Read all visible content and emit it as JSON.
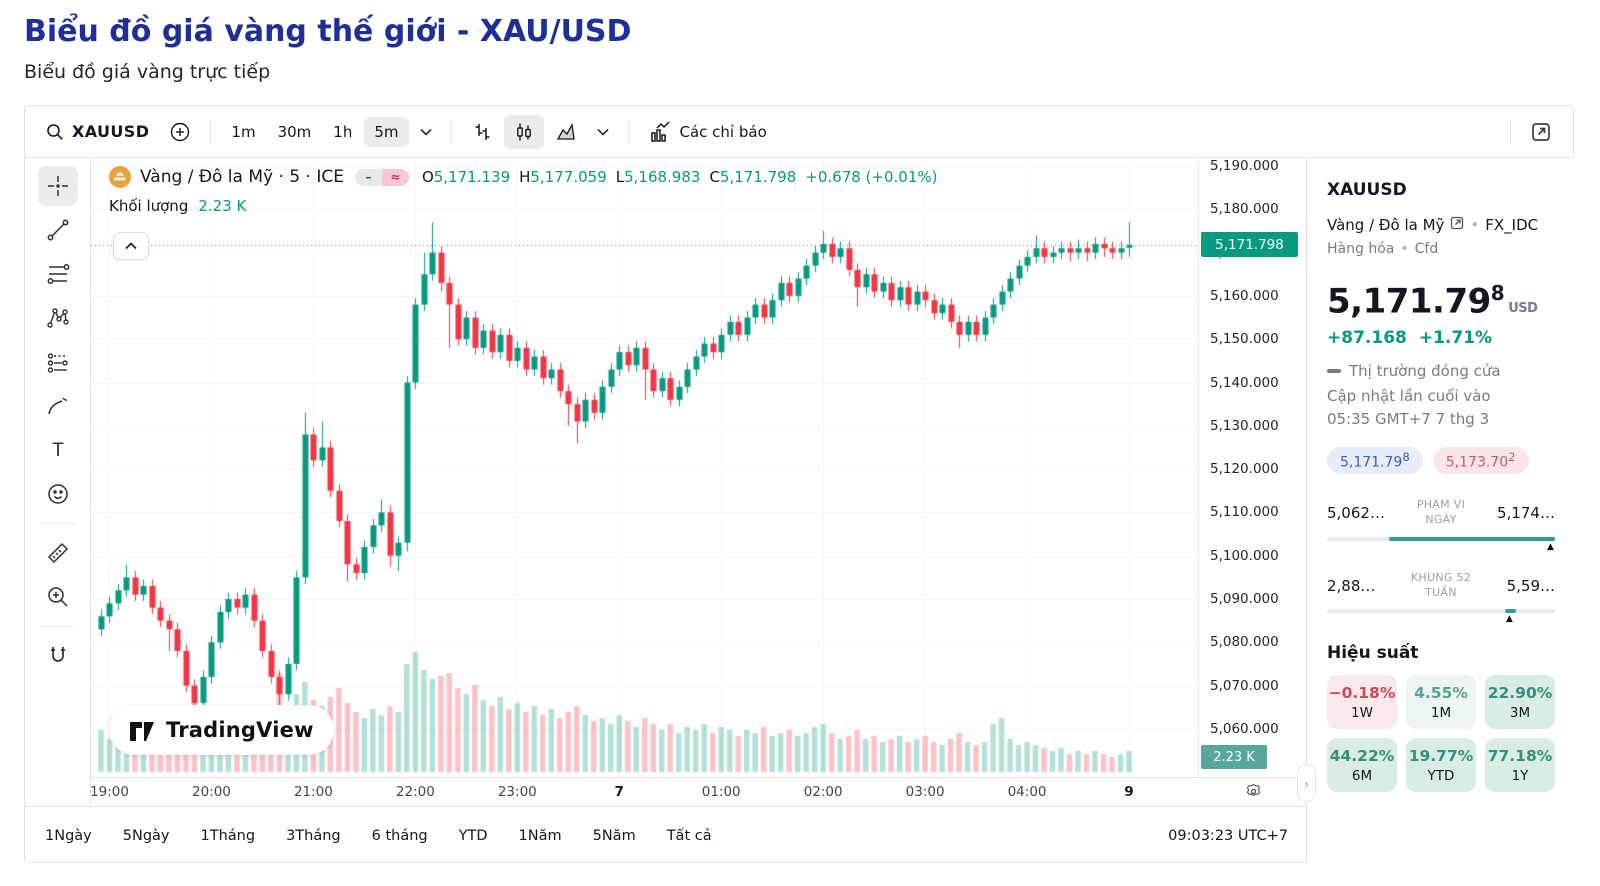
{
  "page": {
    "title": "Biểu đồ giá vàng thế giới - XAU/USD",
    "subtitle": "Biểu đồ giá vàng trực tiếp",
    "title_color": "#1e2f97"
  },
  "toolbar": {
    "symbol": "XAUUSD",
    "intervals": [
      "1m",
      "30m",
      "1h",
      "5m"
    ],
    "active_interval": "5m",
    "indicators_label": "Các chỉ báo",
    "icons": [
      "search-icon",
      "compare-plus-icon",
      "chevron-down-icon",
      "bars-style-icon",
      "candles-style-icon",
      "area-style-icon",
      "indicators-icon",
      "external-link-icon"
    ]
  },
  "left_toolbar": {
    "tools": [
      "crosshair",
      "trend-line",
      "fib-retracement",
      "xabcd-pattern",
      "forecast",
      "brush",
      "text",
      "emoji",
      "ruler",
      "zoom-in",
      "magnet"
    ],
    "active_tool": "crosshair"
  },
  "legend": {
    "name": "Vàng / Đô la Mỹ · 5 · ICE",
    "o_label": "O",
    "o": "5,171.139",
    "h_label": "H",
    "h": "5,177.059",
    "l_label": "L",
    "l": "5,168.983",
    "c_label": "C",
    "c": "5,171.798",
    "change": "+0.678 (+0.01%)",
    "volume_label": "Khối lượng",
    "volume_value": "2.23 K",
    "minus_flag": "–",
    "approx_flag": "≈"
  },
  "price_scale": {
    "current_label": "5,171.798",
    "volume_label": "2.23 K"
  },
  "watermark": {
    "brand": "TradingView"
  },
  "bottom_bar": {
    "ranges": [
      "1Ngày",
      "5Ngày",
      "1Tháng",
      "3Tháng",
      "6 tháng",
      "YTD",
      "1Năm",
      "5Năm",
      "Tất cả"
    ],
    "clock": "09:03:23 UTC+7"
  },
  "details_panel": {
    "symbol": "XAUUSD",
    "name": "Vàng / Đô la Mỹ",
    "exchange": "FX_IDC",
    "market_type": "Hàng hóa",
    "instrument": "Cfd",
    "price_main": "5,171.79",
    "price_sup": "8",
    "currency": "USD",
    "change_abs": "+87.168",
    "change_pct": "+1.71%",
    "market_status": "Thị trường đóng cửa",
    "updated_line1": "Cập nhật lần cuối vào",
    "updated_line2": "05:35 GMT+7 7 thg 3",
    "bid": {
      "main": "5,171.79",
      "sup": "8"
    },
    "ask": {
      "main": "5,173.70",
      "sup": "2"
    },
    "day_range": {
      "low": "5,062…",
      "label_line1": "PHẠM VI",
      "label_line2": "NGÀY",
      "high": "5,174…",
      "fill_start_pct": 27,
      "fill_end_pct": 100,
      "marker_pct": 98
    },
    "week52_range": {
      "low": "2,88…",
      "label_line1": "KHUNG 52",
      "label_line2": "TUẦN",
      "high": "5,59…",
      "chip_start_pct": 78,
      "chip_end_pct": 83,
      "marker_pct": 80
    }
  },
  "performance": {
    "title": "Hiệu suất",
    "tiles": [
      {
        "value": "−0.18%",
        "label": "1W",
        "fg": "#cc4a57",
        "bg": "#f9e9ea"
      },
      {
        "value": "4.55%",
        "label": "1M",
        "fg": "#5aa392",
        "bg": "#edf5f2"
      },
      {
        "value": "22.90%",
        "label": "3M",
        "fg": "#35907e",
        "bg": "#d9ece6"
      },
      {
        "value": "44.22%",
        "label": "6M",
        "fg": "#35907e",
        "bg": "#d9ece6"
      },
      {
        "value": "19.77%",
        "label": "YTD",
        "fg": "#35907e",
        "bg": "#d9ece6"
      },
      {
        "value": "77.18%",
        "label": "1Y",
        "fg": "#35907e",
        "bg": "#d9ece6"
      }
    ]
  },
  "chart_data": {
    "type": "candlestick",
    "symbol": "XAUUSD",
    "description": "Vàng / Đô la Mỹ",
    "interval_minutes": 5,
    "exchange": "ICE",
    "last_bar": {
      "open": 5171.139,
      "high": 5177.059,
      "low": 5168.983,
      "close": 5171.798,
      "change": 0.678,
      "change_pct": 0.01,
      "volume_k": 2.23
    },
    "price_ticks": [
      5190,
      5180,
      5170,
      5160,
      5150,
      5140,
      5130,
      5120,
      5110,
      5100,
      5090,
      5080,
      5070,
      5060
    ],
    "current_price": 5171.798,
    "ylim": [
      5052,
      5192
    ],
    "time_labels": [
      {
        "i": 1,
        "t": "19:00"
      },
      {
        "i": 13,
        "t": "20:00"
      },
      {
        "i": 25,
        "t": "21:00"
      },
      {
        "i": 37,
        "t": "22:00"
      },
      {
        "i": 49,
        "t": "23:00"
      },
      {
        "i": 61,
        "t": "7",
        "b": true
      },
      {
        "i": 73,
        "t": "01:00"
      },
      {
        "i": 85,
        "t": "02:00"
      },
      {
        "i": 97,
        "t": "03:00"
      },
      {
        "i": 109,
        "t": "04:00"
      },
      {
        "i": 121,
        "t": "9",
        "b": true
      }
    ],
    "colors": {
      "up": "#089981",
      "down": "#f23645",
      "vol_up": "rgba(8,153,129,0.30)",
      "vol_down": "rgba(242,54,69,0.30)",
      "grid": "#f0f3fa",
      "axis_line": "#e0e3eb",
      "price_line": "#089981"
    },
    "candles": [
      [
        5083,
        5087.5,
        5081.5,
        5086,
        1.4
      ],
      [
        5086,
        5090.5,
        5084.5,
        5089,
        1.1
      ],
      [
        5089,
        5093.5,
        5087.5,
        5092,
        1.3
      ],
      [
        5092,
        5098,
        5090.5,
        5095,
        1.6
      ],
      [
        5095,
        5096.5,
        5089.5,
        5091,
        1.2
      ],
      [
        5091,
        5094.5,
        5089.5,
        5093,
        1.0
      ],
      [
        5093,
        5094.5,
        5086.5,
        5088,
        1.3
      ],
      [
        5088,
        5089.5,
        5083.5,
        5085,
        1.5
      ],
      [
        5085,
        5086.5,
        5078,
        5083,
        1.8
      ],
      [
        5083,
        5084.5,
        5076.5,
        5078,
        1.6
      ],
      [
        5078,
        5079.5,
        5068.5,
        5070,
        2.0
      ],
      [
        5070,
        5071.5,
        5062,
        5066,
        2.4
      ],
      [
        5066,
        5073.5,
        5064.5,
        5072,
        1.7
      ],
      [
        5072,
        5081.5,
        5070.5,
        5080,
        1.5
      ],
      [
        5080,
        5088.5,
        5078.5,
        5087,
        1.3
      ],
      [
        5087,
        5091.5,
        5085.5,
        5090,
        1.2
      ],
      [
        5090,
        5091.5,
        5086.5,
        5088,
        1.1
      ],
      [
        5088,
        5092.5,
        5086.5,
        5091,
        1.4
      ],
      [
        5091,
        5092.5,
        5083.5,
        5085,
        1.6
      ],
      [
        5085,
        5086.5,
        5076.5,
        5078,
        1.9
      ],
      [
        5078,
        5079.5,
        5070.5,
        5072,
        2.2
      ],
      [
        5072,
        5073.5,
        5063,
        5068,
        3.3
      ],
      [
        5068,
        5076.5,
        5066.5,
        5075,
        2.1
      ],
      [
        5075,
        5096.5,
        5073.5,
        5095,
        2.6
      ],
      [
        5095,
        5133,
        5093.5,
        5128,
        3.0
      ],
      [
        5128,
        5129.5,
        5120.5,
        5122,
        2.4
      ],
      [
        5122,
        5131,
        5120.5,
        5125,
        2.2
      ],
      [
        5125,
        5126.5,
        5113.5,
        5115,
        2.5
      ],
      [
        5115,
        5116.5,
        5106.5,
        5108,
        2.8
      ],
      [
        5108,
        5109.5,
        5094,
        5098,
        2.3
      ],
      [
        5098,
        5099.5,
        5094.5,
        5096,
        2.0
      ],
      [
        5096,
        5103.5,
        5094.5,
        5102,
        1.8
      ],
      [
        5102,
        5108.5,
        5100.5,
        5107,
        2.1
      ],
      [
        5107,
        5113,
        5105.5,
        5110,
        1.9
      ],
      [
        5110,
        5111.5,
        5097.5,
        5100,
        2.2
      ],
      [
        5100,
        5104.5,
        5096.5,
        5103,
        2.0
      ],
      [
        5103,
        5141.5,
        5101,
        5140,
        3.6
      ],
      [
        5140,
        5159.5,
        5138.5,
        5158,
        4.0
      ],
      [
        5158,
        5170,
        5156.5,
        5165,
        3.4
      ],
      [
        5165,
        5177,
        5163.5,
        5170,
        3.1
      ],
      [
        5170,
        5171.5,
        5161,
        5163,
        3.2
      ],
      [
        5163,
        5164.5,
        5148,
        5158,
        3.3
      ],
      [
        5158,
        5159.5,
        5148.5,
        5150,
        2.8
      ],
      [
        5150,
        5156.5,
        5148.5,
        5155,
        2.6
      ],
      [
        5155,
        5156.5,
        5146.5,
        5148,
        2.9
      ],
      [
        5148,
        5153.5,
        5146.5,
        5152,
        2.4
      ],
      [
        5152,
        5153.5,
        5145.5,
        5147,
        2.2
      ],
      [
        5147,
        5152.5,
        5145.5,
        5151,
        2.5
      ],
      [
        5151,
        5152.5,
        5143.5,
        5145,
        2.1
      ],
      [
        5145,
        5149.5,
        5143.5,
        5148,
        2.3
      ],
      [
        5148,
        5149.5,
        5141.5,
        5143,
        2.0
      ],
      [
        5143,
        5147.5,
        5141.5,
        5146,
        2.2
      ],
      [
        5146,
        5147.5,
        5139.5,
        5141,
        1.9
      ],
      [
        5141,
        5144.5,
        5139.5,
        5143,
        2.1
      ],
      [
        5143,
        5144.5,
        5136.5,
        5138,
        1.8
      ],
      [
        5138,
        5139.5,
        5130,
        5135,
        2.0
      ],
      [
        5135,
        5136.5,
        5126,
        5131,
        2.2
      ],
      [
        5131,
        5137.5,
        5129.5,
        5136,
        1.9
      ],
      [
        5136,
        5137.5,
        5131.5,
        5133,
        1.7
      ],
      [
        5133,
        5140.5,
        5131.5,
        5139,
        1.8
      ],
      [
        5139,
        5144.5,
        5137.5,
        5143,
        1.6
      ],
      [
        5143,
        5148.5,
        5141.5,
        5147,
        1.9
      ],
      [
        5147,
        5148.5,
        5142.5,
        5144,
        1.7
      ],
      [
        5144,
        5149.5,
        5142.5,
        5148,
        1.5
      ],
      [
        5148,
        5149.5,
        5136,
        5143,
        1.8
      ],
      [
        5143,
        5144.5,
        5136.5,
        5138,
        1.6
      ],
      [
        5138,
        5142.5,
        5136.5,
        5141,
        1.4
      ],
      [
        5141,
        5142.5,
        5134.5,
        5136,
        1.6
      ],
      [
        5136,
        5140.5,
        5134.5,
        5139,
        1.3
      ],
      [
        5139,
        5144.5,
        5137.5,
        5143,
        1.5
      ],
      [
        5143,
        5147.5,
        5141.5,
        5146,
        1.4
      ],
      [
        5146,
        5150.5,
        5144.5,
        5149,
        1.6
      ],
      [
        5149,
        5150.5,
        5145.5,
        5147,
        1.3
      ],
      [
        5147,
        5152.5,
        5145.5,
        5151,
        1.5
      ],
      [
        5151,
        5155.5,
        5149.5,
        5154,
        1.4
      ],
      [
        5154,
        5155.5,
        5149.5,
        5151,
        1.2
      ],
      [
        5151,
        5156.5,
        5149.5,
        5155,
        1.4
      ],
      [
        5155,
        5159.5,
        5153.5,
        5158,
        1.3
      ],
      [
        5158,
        5159.5,
        5153.5,
        5155,
        1.5
      ],
      [
        5155,
        5160.5,
        5153.5,
        5159,
        1.2
      ],
      [
        5159,
        5164.5,
        5157.5,
        5163,
        1.3
      ],
      [
        5163,
        5164.5,
        5158.5,
        5160,
        1.4
      ],
      [
        5160,
        5165.5,
        5158.5,
        5164,
        1.2
      ],
      [
        5164,
        5168.5,
        5162.5,
        5167,
        1.3
      ],
      [
        5167,
        5171.5,
        5165.5,
        5170,
        1.5
      ],
      [
        5170,
        5175,
        5168.5,
        5172,
        1.6
      ],
      [
        5172,
        5173.5,
        5167.5,
        5169,
        1.3
      ],
      [
        5169,
        5172.5,
        5167.5,
        5171,
        1.1
      ],
      [
        5171,
        5172.5,
        5164.5,
        5166,
        1.2
      ],
      [
        5166,
        5167.5,
        5157.5,
        5162,
        1.4
      ],
      [
        5162,
        5166.5,
        5160.5,
        5165,
        1.1
      ],
      [
        5165,
        5166.5,
        5159.5,
        5161,
        1.2
      ],
      [
        5161,
        5164.5,
        5159.5,
        5163,
        1.0
      ],
      [
        5163,
        5164.5,
        5157.5,
        5159,
        1.1
      ],
      [
        5159,
        5163.5,
        5157.5,
        5162,
        1.2
      ],
      [
        5162,
        5163.5,
        5156.5,
        5158,
        1.0
      ],
      [
        5158,
        5162.5,
        5156.5,
        5161,
        1.1
      ],
      [
        5161,
        5162.5,
        5157.5,
        5159,
        1.2
      ],
      [
        5159,
        5160.5,
        5154.5,
        5156,
        1.0
      ],
      [
        5156,
        5159.5,
        5154.5,
        5158,
        0.9
      ],
      [
        5158,
        5159.5,
        5152.5,
        5154,
        1.1
      ],
      [
        5154,
        5155.5,
        5148,
        5151,
        1.3
      ],
      [
        5151,
        5155.5,
        5149.5,
        5154,
        1.0
      ],
      [
        5154,
        5155.5,
        5149.5,
        5151,
        0.9
      ],
      [
        5151,
        5156.5,
        5149.5,
        5155,
        1.0
      ],
      [
        5155,
        5159.5,
        5153.5,
        5158,
        1.6
      ],
      [
        5158,
        5162.5,
        5156.5,
        5161,
        1.8
      ],
      [
        5161,
        5165.5,
        5159.5,
        5164,
        1.1
      ],
      [
        5164,
        5168.5,
        5162.5,
        5167,
        0.9
      ],
      [
        5167,
        5170.5,
        5165.5,
        5169,
        1.0
      ],
      [
        5169,
        5174,
        5167.5,
        5171,
        0.9
      ],
      [
        5171,
        5172.5,
        5167.5,
        5169,
        0.8
      ],
      [
        5169,
        5171.5,
        5167.5,
        5170,
        0.7
      ],
      [
        5170,
        5172.5,
        5168.5,
        5171,
        0.8
      ],
      [
        5171,
        5172.5,
        5168,
        5170,
        0.6
      ],
      [
        5170,
        5173,
        5168.5,
        5171,
        0.7
      ],
      [
        5171,
        5172.5,
        5168,
        5170,
        0.6
      ],
      [
        5170,
        5173.5,
        5168.5,
        5172,
        0.7
      ],
      [
        5172,
        5173.5,
        5169,
        5171,
        0.6
      ],
      [
        5171,
        5172.5,
        5168.5,
        5170,
        0.5
      ],
      [
        5170,
        5172.5,
        5168.5,
        5171,
        0.6
      ],
      [
        5171.139,
        5177.059,
        5168.983,
        5171.798,
        0.7
      ]
    ]
  }
}
